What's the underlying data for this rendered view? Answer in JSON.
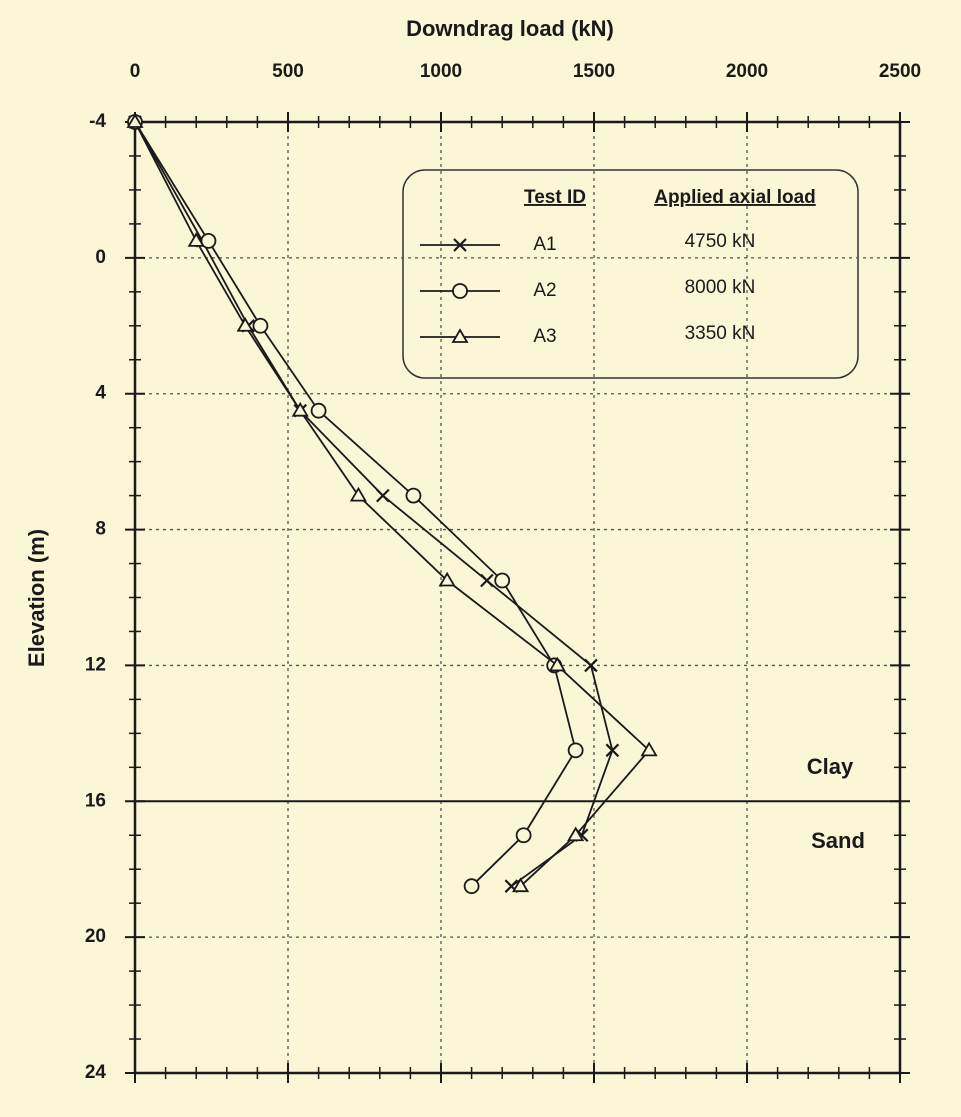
{
  "chart_data": {
    "type": "line",
    "title": "Downdrag load (kN)",
    "y_label": "Elevation (m)",
    "xlim": [
      0,
      2500
    ],
    "xticks": [
      0,
      500,
      1000,
      1500,
      2000,
      2500
    ],
    "ylim": [
      -4,
      24
    ],
    "yticks": [
      -4,
      0,
      4,
      8,
      12,
      16,
      20,
      24
    ],
    "y_reversed": true,
    "grid": true,
    "color": "#1a1a1a",
    "background": "#fbf6d6",
    "boundary": 16,
    "annotations": [
      "Clay",
      "Sand"
    ],
    "legend_headers": [
      "Test ID",
      "Applied axial load"
    ],
    "legend_position": "upper right",
    "series": [
      {
        "name": "A1",
        "load": "4750 kN",
        "marker": "x",
        "x": [
          0,
          220,
          370,
          540,
          810,
          1150,
          1490,
          1560,
          1460,
          1230
        ],
        "values": [
          -4,
          -0.5,
          2,
          4.5,
          7,
          9.5,
          12,
          14.5,
          17,
          18.5
        ]
      },
      {
        "name": "A2",
        "load": "8000 kN",
        "marker": "circle",
        "x": [
          0,
          240,
          410,
          600,
          910,
          1200,
          1370,
          1440,
          1270,
          1100
        ],
        "values": [
          -4,
          -0.5,
          2,
          4.5,
          7,
          9.5,
          12,
          14.5,
          17,
          18.5
        ]
      },
      {
        "name": "A3",
        "load": "3350 kN",
        "marker": "triangle",
        "x": [
          0,
          200,
          360,
          540,
          730,
          1020,
          1380,
          1680,
          1440,
          1260
        ],
        "values": [
          -4,
          -0.5,
          2,
          4.5,
          7,
          9.5,
          12,
          14.5,
          17,
          18.5
        ]
      }
    ]
  }
}
